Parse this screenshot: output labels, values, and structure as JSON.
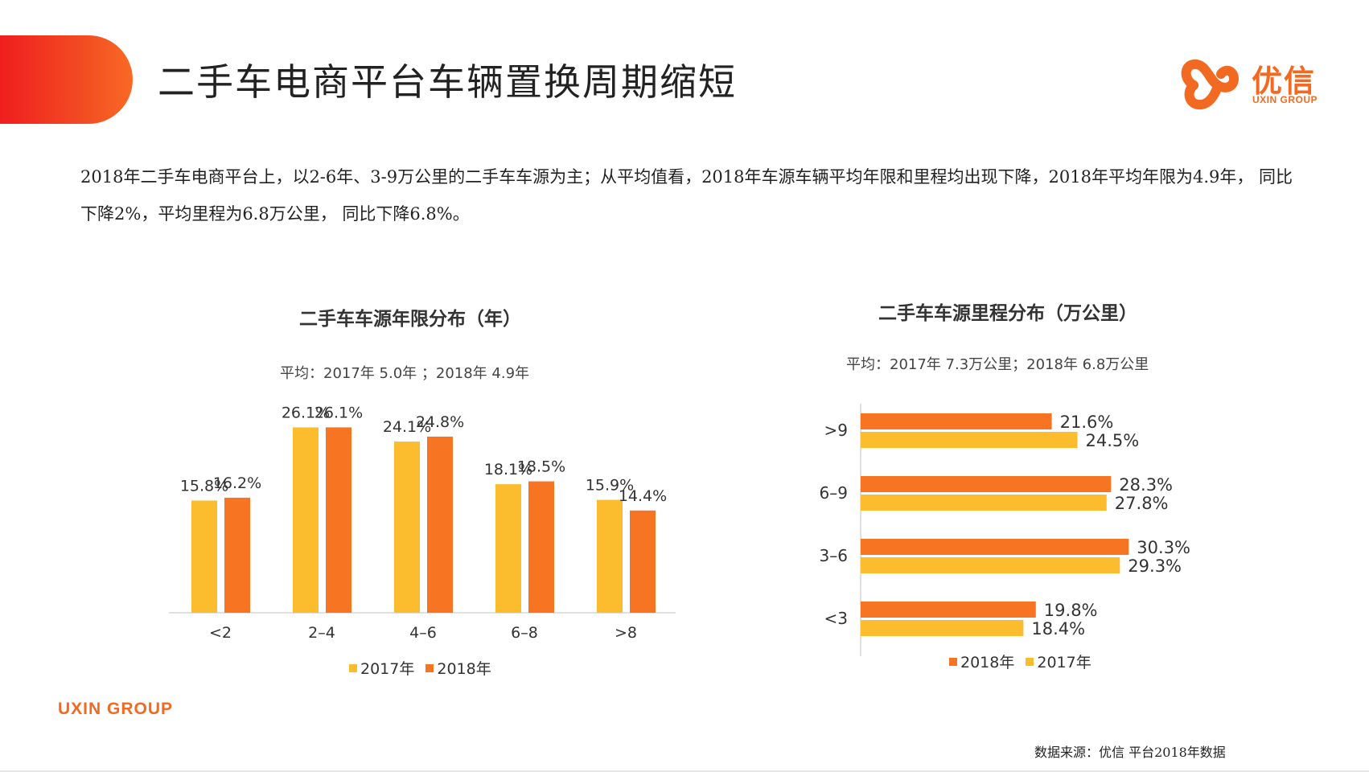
{
  "page": {
    "title": "二手车电商平台车辆置换周期缩短",
    "logo_text": "优信",
    "logo_sub": "UXIN GROUP",
    "intro": "2018年二手车电商平台上，以2-6年、3-9万公里的二手车车源为主；从平均值看，2018年车源车辆平均年限和里程均出现下降，2018年平均年限为4.9年， 同比下降2%，平均里程为6.8万公里， 同比下降6.8%。",
    "footer_brand": "UXIN GROUP",
    "source": "数据来源：优信 平台2018年数据"
  },
  "colors": {
    "accent": "#f26a21",
    "series_2017": "#fbbd2e",
    "series_2018": "#f77423",
    "tab_red": "#f01e1e"
  },
  "chart_data": [
    {
      "type": "bar",
      "title": "二手车车源年限分布（年）",
      "subtitle": "平均：2017年 5.0年 ；2018年 4.9年",
      "categories": [
        "<2",
        "2-4",
        "4-6",
        "6-8",
        ">8"
      ],
      "series": [
        {
          "name": "2017年",
          "values": [
            15.8,
            26.1,
            24.1,
            18.1,
            15.9
          ],
          "labels": [
            "15.8%",
            "26.1%",
            "24.1%",
            "18.1%",
            "15.9%"
          ]
        },
        {
          "name": "2018年",
          "values": [
            16.2,
            26.1,
            24.8,
            18.5,
            14.4
          ],
          "labels": [
            "16.2%",
            "26.1%",
            "24.8%",
            "18.5%",
            "14.4%"
          ]
        }
      ],
      "ylim": [
        0,
        30
      ],
      "grid": false,
      "legend": "bottom"
    },
    {
      "type": "bar",
      "orientation": "horizontal",
      "title": "二手车车源里程分布（万公里）",
      "subtitle": "平均：2017年 7.3万公里；2018年 6.8万公里",
      "categories": [
        ">9",
        "6-9",
        "3-6",
        "<3"
      ],
      "series": [
        {
          "name": "2018年",
          "values": [
            21.6,
            28.3,
            30.3,
            19.8
          ],
          "labels": [
            "21.6%",
            "28.3%",
            "30.3%",
            "19.8%"
          ]
        },
        {
          "name": "2017年",
          "values": [
            24.5,
            27.8,
            29.3,
            18.4
          ],
          "labels": [
            "24.5%",
            "27.8%",
            "29.3%",
            "18.4%"
          ]
        }
      ],
      "xlim": [
        0,
        35
      ],
      "grid": false,
      "legend": "bottom"
    }
  ]
}
